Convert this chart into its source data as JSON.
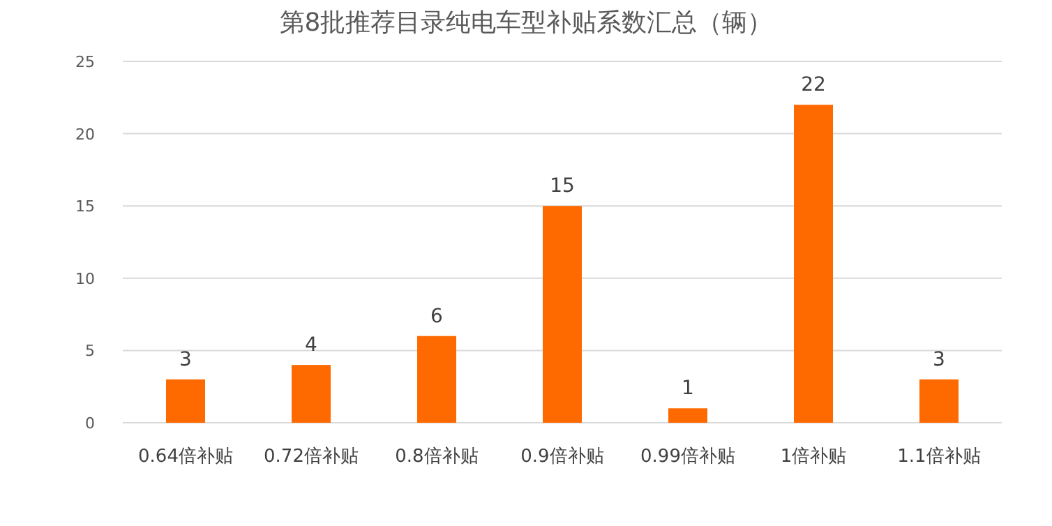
{
  "chart_data": {
    "type": "bar",
    "title": "第8批推荐目录纯电车型补贴系数汇总（辆）",
    "categories": [
      "0.64倍补贴",
      "0.72倍补贴",
      "0.8倍补贴",
      "0.9倍补贴",
      "0.99倍补贴",
      "1倍补贴",
      "1.1倍补贴"
    ],
    "values": [
      3,
      4,
      6,
      15,
      1,
      22,
      3
    ],
    "color": "#ff6a00",
    "ylim": [
      0,
      25
    ],
    "yticks": [
      0,
      5,
      10,
      15,
      20,
      25
    ],
    "grid": "y",
    "data_labels": true
  }
}
